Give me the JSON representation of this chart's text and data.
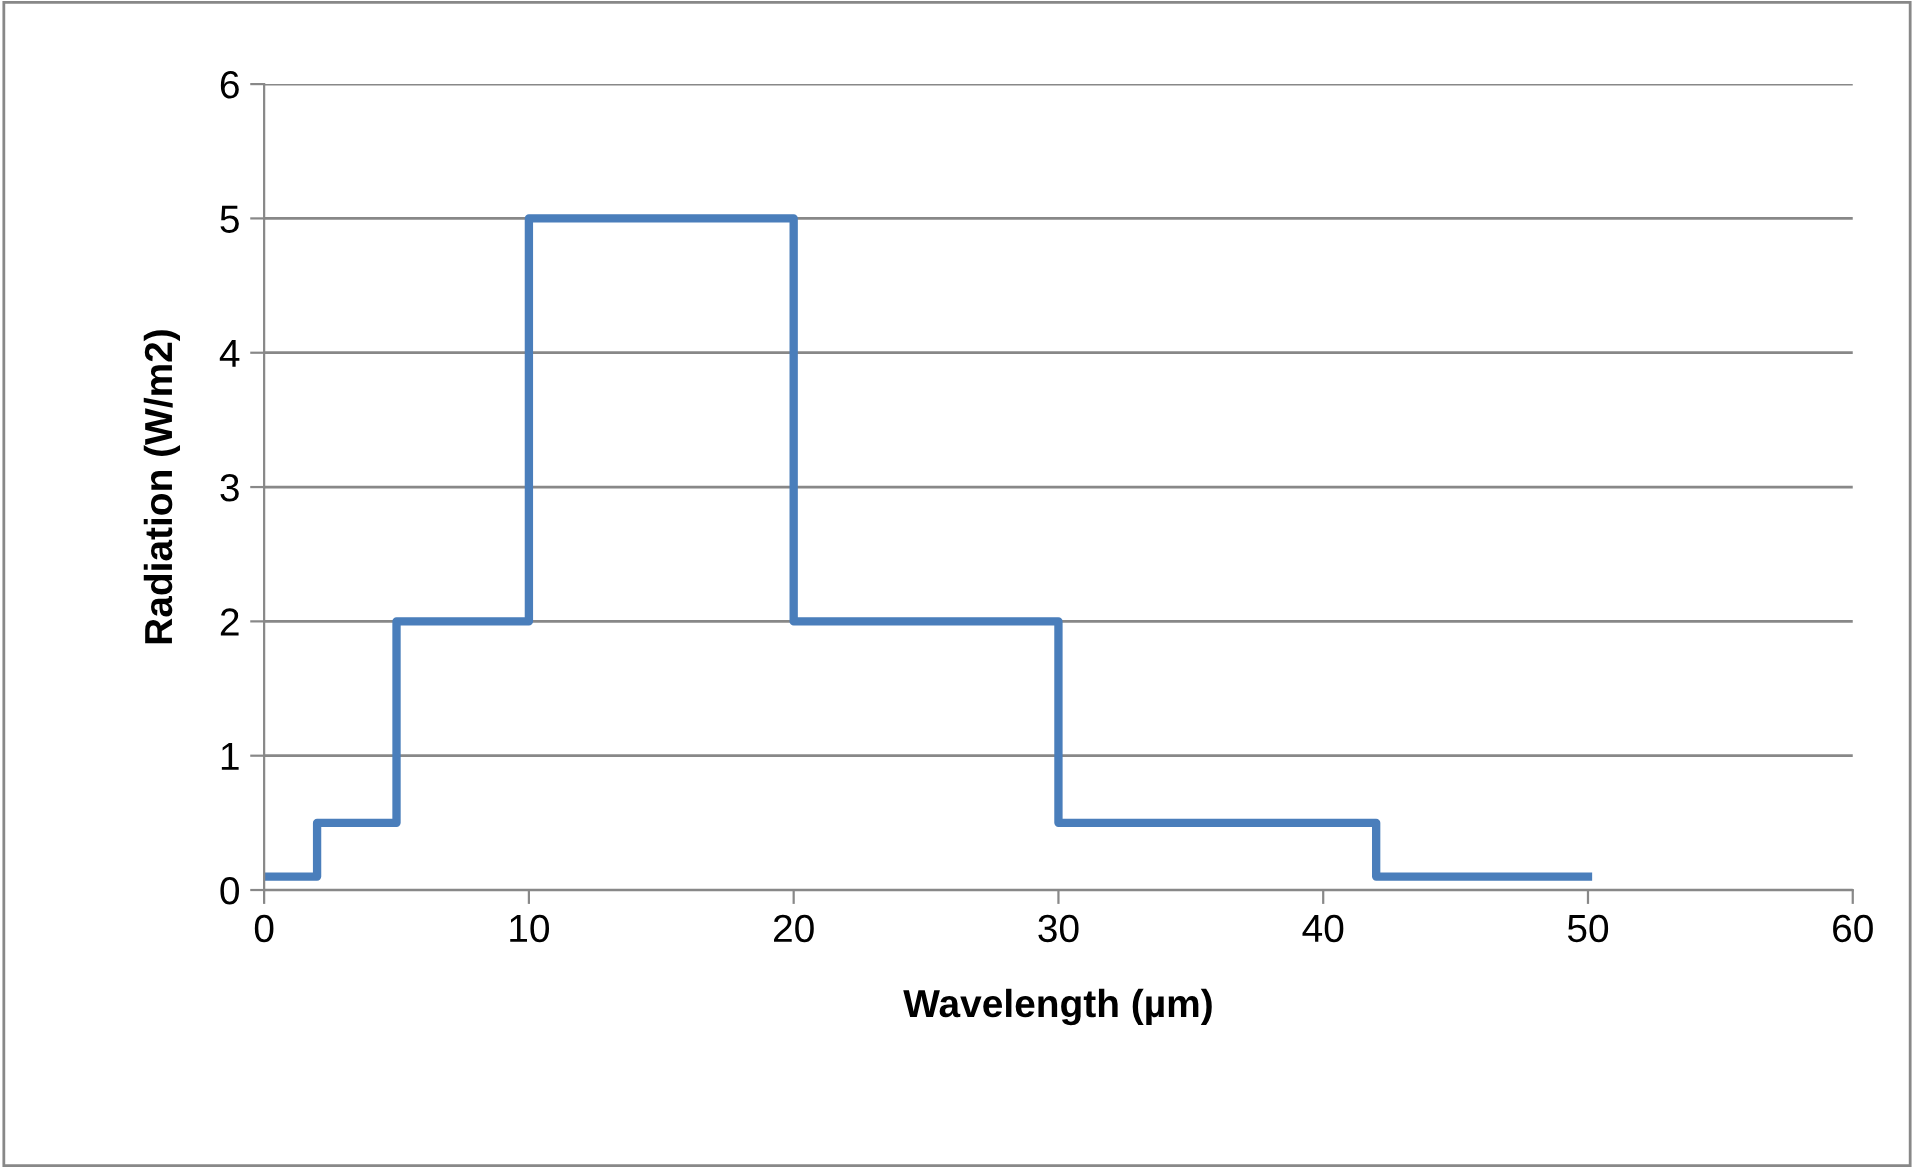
{
  "chart_data": {
    "type": "step",
    "xlabel": "Wavelength (µm)",
    "ylabel": "Radiation (W/m2)",
    "x": [
      0,
      2,
      5,
      10,
      20,
      30,
      42,
      50
    ],
    "series": [
      {
        "color": "#4a7ebb",
        "values": [
          0.1,
          0.5,
          2,
          5,
          2,
          0.5,
          0.1,
          0.1
        ]
      }
    ],
    "xlim": [
      0,
      60
    ],
    "xticks": [
      0,
      10,
      20,
      30,
      40,
      50,
      60
    ],
    "ylim": [
      0,
      6
    ],
    "yticks": [
      0,
      1,
      2,
      3,
      4,
      5,
      6
    ],
    "grid": "y",
    "marker": "none",
    "line_style": "solid"
  }
}
